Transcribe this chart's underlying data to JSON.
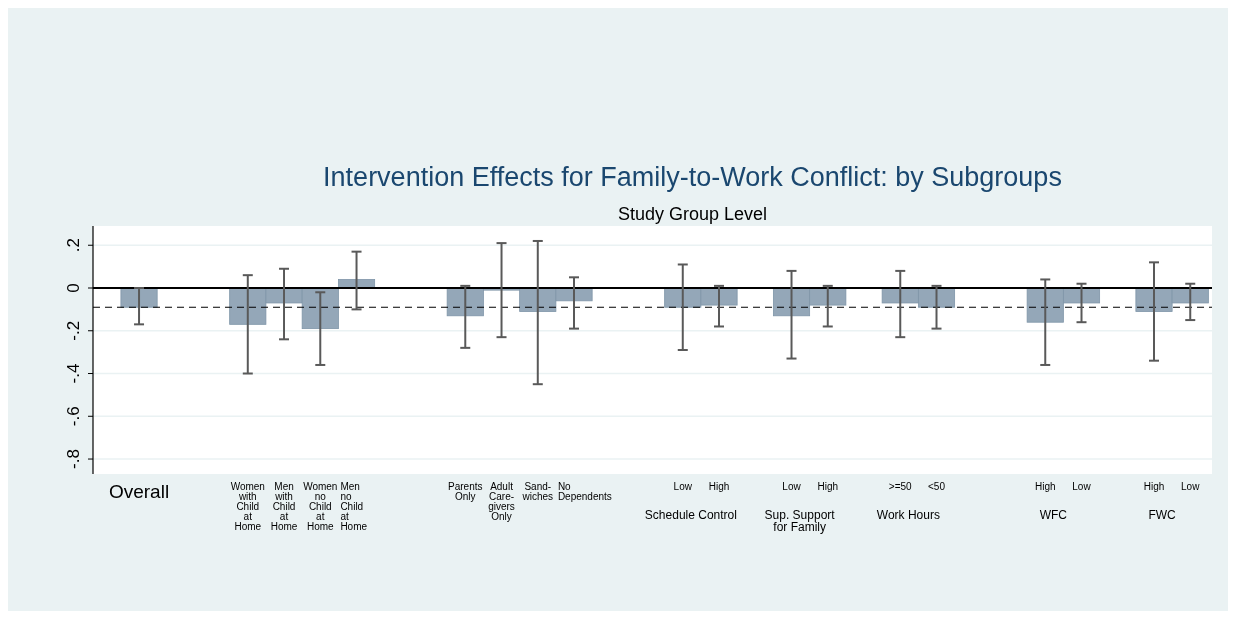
{
  "chart_data": {
    "type": "bar",
    "title": "Intervention Effects for Family-to-Work Conflict: by Subgroups",
    "subtitle": "Study Group Level",
    "categories": [
      "Overall",
      null,
      null,
      "Women\nwith\nChild\nat\nHome",
      "Men\nwith\nChild\nat\nHome",
      "Women\nno\nChild\nat\nHome",
      "Men\nno\nChild\nat\nHome",
      null,
      null,
      "Parents\nOnly",
      "Adult\nCare-\ngivers\nOnly",
      "Sand-\nwiches",
      "No\nDependents",
      null,
      null,
      "Low",
      "High",
      null,
      "Low",
      "High",
      null,
      ">=50",
      "<50",
      null,
      null,
      "High",
      "Low",
      null,
      "High",
      "Low"
    ],
    "values": [
      -0.09,
      null,
      null,
      -0.17,
      -0.07,
      -0.19,
      0.04,
      null,
      null,
      -0.13,
      -0.01,
      -0.11,
      -0.06,
      null,
      null,
      -0.09,
      -0.08,
      null,
      -0.13,
      -0.08,
      null,
      -0.07,
      -0.09,
      null,
      null,
      -0.16,
      -0.07,
      null,
      -0.11,
      -0.07
    ],
    "errors": [
      [
        -0.17,
        0.0
      ],
      null,
      null,
      [
        -0.4,
        0.06
      ],
      [
        -0.24,
        0.09
      ],
      [
        -0.36,
        -0.02
      ],
      [
        -0.1,
        0.17
      ],
      null,
      null,
      [
        -0.28,
        0.01
      ],
      [
        -0.23,
        0.21
      ],
      [
        -0.45,
        0.22
      ],
      [
        -0.19,
        0.05
      ],
      null,
      null,
      [
        -0.29,
        0.11
      ],
      [
        -0.18,
        0.01
      ],
      null,
      [
        -0.33,
        0.08
      ],
      [
        -0.18,
        0.01
      ],
      null,
      [
        -0.23,
        0.08
      ],
      [
        -0.19,
        0.01
      ],
      null,
      null,
      [
        -0.36,
        0.04
      ],
      [
        -0.16,
        0.02
      ],
      null,
      [
        -0.34,
        0.12
      ],
      [
        -0.15,
        0.02
      ]
    ],
    "color": "#94a7b8",
    "ylim": [
      -0.87,
      0.29
    ],
    "yticks": [
      {
        "value": -0.8,
        "label": "-.8"
      },
      {
        "value": -0.6,
        "label": "-.6"
      },
      {
        "value": -0.4,
        "label": "-.4"
      },
      {
        "value": -0.2,
        "label": "-.2"
      },
      {
        "value": 0,
        "label": "0"
      },
      {
        "value": 0.2,
        "label": ".2"
      }
    ],
    "grid": "y",
    "ref_lines": [
      {
        "axis": "y",
        "value": 0,
        "color": "#000000",
        "line_style": "solid"
      },
      {
        "axis": "y",
        "value": -0.09,
        "color": "#000000",
        "line_style": "dashed"
      }
    ],
    "annotations": [
      "Schedule Control",
      "Sup. Support\nfor Family",
      "Work Hours",
      "WFC",
      "FWC"
    ]
  }
}
